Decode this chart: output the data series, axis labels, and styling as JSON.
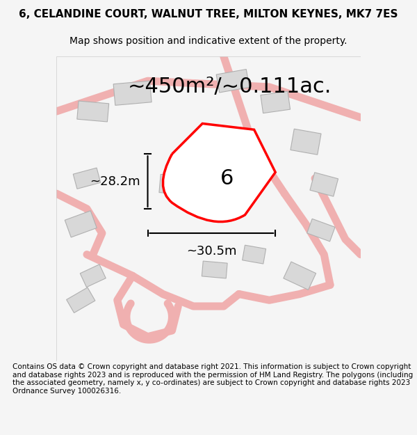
{
  "title": "6, CELANDINE COURT, WALNUT TREE, MILTON KEYNES, MK7 7ES",
  "subtitle": "Map shows position and indicative extent of the property.",
  "area_text": "~450m²/~0.111ac.",
  "width_label": "~30.5m",
  "height_label": "~28.2m",
  "number_label": "6",
  "footer": "Contains OS data © Crown copyright and database right 2021. This information is subject to Crown copyright and database rights 2023 and is reproduced with the permission of HM Land Registry. The polygons (including the associated geometry, namely x, y co-ordinates) are subject to Crown copyright and database rights 2023 Ordnance Survey 100026316.",
  "bg_color": "#f5f5f5",
  "map_bg": "#ffffff",
  "plot_color": "#ff0000",
  "plot_fill": "#ffffff",
  "road_color": "#f0b0b0",
  "building_color": "#d8d8d8",
  "building_edge": "#aaaaaa",
  "title_fontsize": 11,
  "subtitle_fontsize": 10,
  "area_fontsize": 22,
  "label_fontsize": 13,
  "number_fontsize": 22,
  "footer_fontsize": 7.5
}
